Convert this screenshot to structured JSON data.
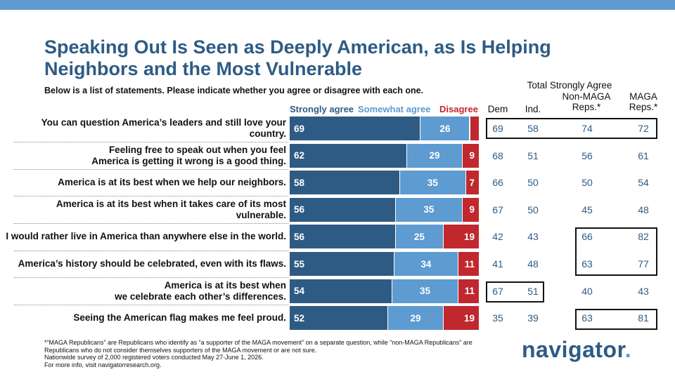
{
  "title_line1": "Speaking Out Is Seen as Deeply American, as Is Helping",
  "title_line2": "Neighbors and the Most Vulnerable",
  "subtitle": "Below is a list of statements. Please indicate whether you agree or disagree with each one.",
  "column_headers": {
    "total_strongly_agree": "Total Strongly Agree",
    "dem": "Dem",
    "ind": "Ind.",
    "non_maga_line1": "Non-MAGA",
    "non_maga_line2": "Reps.*",
    "maga_line1": "MAGA",
    "maga_line2": "Reps.*"
  },
  "colors": {
    "strongly_agree": "#2e5b84",
    "somewhat_agree": "#5d9bd1",
    "disagree": "#c0282e",
    "title": "#2e5b84",
    "top_bar": "#5d9bd1"
  },
  "chart_data": {
    "type": "bar",
    "orientation": "horizontal",
    "stacked": true,
    "legend_placement": "top",
    "series": [
      {
        "name": "Strongly agree",
        "color": "#2e5b84",
        "values": [
          69,
          62,
          58,
          56,
          56,
          55,
          54,
          52
        ]
      },
      {
        "name": "Somewhat agree",
        "color": "#5d9bd1",
        "values": [
          26,
          29,
          35,
          35,
          25,
          34,
          35,
          29
        ]
      },
      {
        "name": "Disagree",
        "color": "#c0282e",
        "values": [
          5,
          9,
          7,
          9,
          19,
          11,
          11,
          19
        ],
        "labels": [
          "",
          "9",
          "7",
          "9",
          "19",
          "11",
          "11",
          "19"
        ]
      }
    ],
    "categories": [
      {
        "line1": "You can question America’s leaders and still love your country.",
        "line2": ""
      },
      {
        "line1": "Feeling free to speak out when you feel",
        "line2": "America is getting it wrong is a good thing."
      },
      {
        "line1": "America is at its best when we help our neighbors.",
        "line2": ""
      },
      {
        "line1": "America is at its best when it takes care of its most vulnerable.",
        "line2": ""
      },
      {
        "line1": "I would rather live in America than anywhere else in the world.",
        "line2": ""
      },
      {
        "line1": "America’s history should be celebrated, even with its flaws.",
        "line2": ""
      },
      {
        "line1": "America is at its best when",
        "line2": "we celebrate each other’s differences."
      },
      {
        "line1": "Seeing the American flag makes me feel proud.",
        "line2": ""
      }
    ],
    "table": {
      "title": "Total Strongly Agree",
      "columns": [
        "Dem",
        "Ind.",
        "Non-MAGA Reps.*",
        "MAGA Reps.*"
      ],
      "rows": [
        [
          69,
          58,
          74,
          72
        ],
        [
          68,
          51,
          56,
          61
        ],
        [
          66,
          50,
          50,
          54
        ],
        [
          67,
          50,
          45,
          48
        ],
        [
          42,
          43,
          66,
          82
        ],
        [
          41,
          48,
          63,
          77
        ],
        [
          67,
          51,
          40,
          43
        ],
        [
          35,
          39,
          63,
          81
        ]
      ]
    }
  },
  "footnotes": {
    "line1": "*“MAGA Republicans” are Republicans who identify as “a supporter of the MAGA movement” on a separate question, while “non-MAGA Republicans” are",
    "line2": "Republicans who do not consider themselves supporters of the MAGA movement or are not sure.",
    "line3": "Nationwide survey of 2,000 registered voters conducted May 27-June 1, 2026.",
    "line4": "For more info, visit navigatorresearch.org."
  },
  "logo": {
    "text": "navigator",
    "dot": "."
  }
}
